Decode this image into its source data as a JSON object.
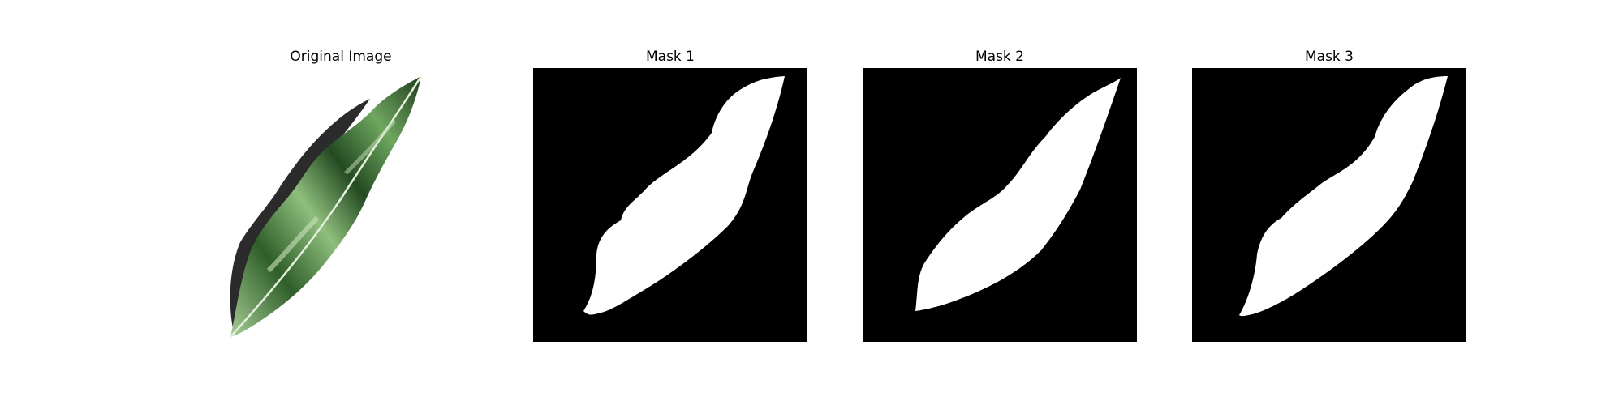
{
  "figure": {
    "panels": [
      {
        "title": "Original Image"
      },
      {
        "title": "Mask 1"
      },
      {
        "title": "Mask 2"
      },
      {
        "title": "Mask 3"
      }
    ],
    "colors": {
      "background": "#ffffff",
      "mask_background": "#000000",
      "mask_foreground": "#ffffff",
      "leaf_dark": "#1f3d1c",
      "leaf_mid": "#3f7a35",
      "leaf_light": "#a8cf95",
      "shadow": "#2b2b2b"
    }
  }
}
